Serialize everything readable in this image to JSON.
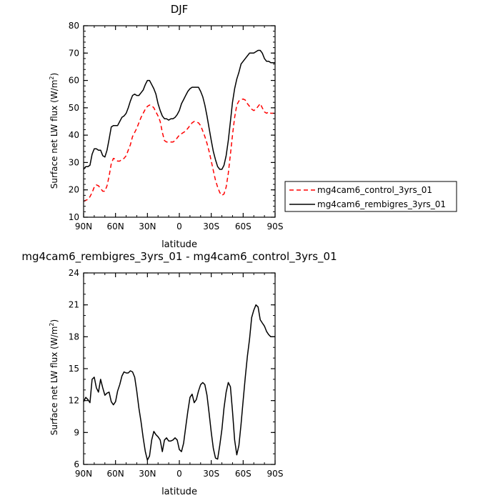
{
  "chart_data": [
    {
      "type": "line",
      "title": "DJF",
      "xlabel": "latitude",
      "ylabel": "Surface net LW flux (W/m²)",
      "ylabel_main": "Surface net LW flux (W/m",
      "ylabel_sup": "2",
      "ylabel_end": ")",
      "xlim": [
        90,
        -90
      ],
      "ylim": [
        10,
        80
      ],
      "xticks": [
        90,
        60,
        30,
        0,
        -30,
        -60,
        -90
      ],
      "xtick_labels": [
        "90N",
        "60N",
        "30N",
        "0",
        "30S",
        "60S",
        "90S"
      ],
      "yticks": [
        10,
        20,
        30,
        40,
        50,
        60,
        70,
        80
      ],
      "ytick_labels": [
        "10",
        "20",
        "30",
        "40",
        "50",
        "60",
        "70",
        "80"
      ],
      "legend": "right",
      "series": [
        {
          "name": "mg4cam6_control_3yrs_01",
          "color": "#ff0000",
          "dash": "dashed",
          "x": [
            90,
            88,
            86,
            84,
            82,
            80,
            78,
            76,
            74,
            72,
            70,
            68,
            66,
            64,
            62,
            60,
            58,
            56,
            54,
            52,
            50,
            48,
            46,
            44,
            42,
            40,
            38,
            36,
            34,
            32,
            30,
            28,
            26,
            24,
            22,
            20,
            18,
            16,
            14,
            12,
            10,
            8,
            6,
            4,
            2,
            0,
            -2,
            -4,
            -6,
            -8,
            -10,
            -12,
            -14,
            -16,
            -18,
            -20,
            -22,
            -24,
            -26,
            -28,
            -30,
            -32,
            -34,
            -36,
            -38,
            -40,
            -42,
            -44,
            -46,
            -48,
            -50,
            -52,
            -54,
            -56,
            -58,
            -60,
            -62,
            -64,
            -66,
            -68,
            -70,
            -72,
            -74,
            -76,
            -78,
            -80,
            -82,
            -84,
            -86,
            -88,
            -90
          ],
          "values": [
            15.8,
            16.2,
            16.5,
            17.5,
            19.0,
            21.0,
            21.8,
            21.5,
            20.5,
            19.5,
            19.5,
            21.5,
            25.0,
            29.5,
            31.5,
            31.2,
            30.5,
            30.5,
            31.2,
            31.5,
            32.5,
            34.5,
            36.5,
            39.5,
            41.0,
            42.5,
            44.5,
            46.5,
            48.0,
            49.5,
            50.5,
            51.0,
            50.8,
            50.0,
            48.5,
            47.0,
            45.0,
            41.0,
            38.0,
            37.5,
            37.5,
            37.5,
            37.5,
            38.0,
            39.0,
            40.0,
            40.5,
            41.0,
            41.5,
            42.5,
            43.5,
            44.5,
            45.0,
            44.8,
            44.5,
            43.5,
            41.5,
            39.5,
            37.0,
            34.0,
            30.5,
            27.0,
            23.5,
            21.0,
            19.0,
            18.0,
            18.5,
            21.0,
            26.0,
            33.0,
            40.0,
            46.5,
            51.0,
            52.5,
            53.0,
            53.2,
            52.8,
            51.5,
            50.5,
            49.5,
            49.0,
            49.5,
            50.5,
            51.5,
            50.0,
            48.5,
            48.0,
            48.5,
            48.0,
            48.0,
            48.0
          ]
        },
        {
          "name": "mg4cam6_rembigres_3yrs_01",
          "color": "#000000",
          "dash": "solid",
          "x": [
            90,
            88,
            86,
            84,
            82,
            80,
            78,
            76,
            74,
            72,
            70,
            68,
            66,
            64,
            62,
            60,
            58,
            56,
            54,
            52,
            50,
            48,
            46,
            44,
            42,
            40,
            38,
            36,
            34,
            32,
            30,
            28,
            26,
            24,
            22,
            20,
            18,
            16,
            14,
            12,
            10,
            8,
            6,
            4,
            2,
            0,
            -2,
            -4,
            -6,
            -8,
            -10,
            -12,
            -14,
            -16,
            -18,
            -20,
            -22,
            -24,
            -26,
            -28,
            -30,
            -32,
            -34,
            -36,
            -38,
            -40,
            -42,
            -44,
            -46,
            -48,
            -50,
            -52,
            -54,
            -56,
            -58,
            -60,
            -62,
            -64,
            -66,
            -68,
            -70,
            -72,
            -74,
            -76,
            -78,
            -80,
            -82,
            -84,
            -86,
            -88,
            -90
          ],
          "values": [
            27.5,
            28.5,
            28.5,
            29.0,
            33.0,
            35.0,
            35.0,
            34.5,
            34.5,
            32.5,
            32.0,
            34.5,
            38.5,
            43.0,
            43.5,
            43.5,
            43.5,
            45.0,
            46.5,
            47.0,
            48.0,
            50.0,
            52.5,
            54.5,
            55.0,
            54.5,
            54.5,
            55.5,
            56.5,
            58.5,
            60.0,
            60.0,
            58.5,
            57.0,
            55.0,
            51.5,
            49.0,
            47.0,
            46.0,
            46.0,
            45.5,
            46.0,
            46.0,
            46.5,
            47.5,
            49.0,
            51.5,
            53.0,
            54.5,
            56.0,
            57.0,
            57.5,
            57.5,
            57.5,
            57.5,
            56.0,
            54.0,
            51.0,
            47.0,
            42.5,
            38.0,
            34.0,
            31.0,
            28.5,
            27.5,
            27.5,
            29.0,
            32.5,
            38.0,
            45.0,
            52.0,
            57.0,
            60.5,
            63.0,
            66.0,
            67.0,
            68.0,
            69.0,
            70.0,
            70.0,
            70.0,
            70.5,
            71.0,
            71.0,
            70.0,
            68.0,
            67.0,
            67.0,
            66.5,
            66.5,
            66.5
          ]
        }
      ]
    },
    {
      "type": "line",
      "title": "mg4cam6_rembigres_3yrs_01 - mg4cam6_control_3yrs_01",
      "xlabel": "latitude",
      "ylabel": "Surface net LW flux (W/m²)",
      "ylabel_main": "Surface net LW flux (W/m",
      "ylabel_sup": "2",
      "ylabel_end": ")",
      "xlim": [
        90,
        -90
      ],
      "ylim": [
        6,
        24
      ],
      "xticks": [
        90,
        60,
        30,
        0,
        -30,
        -60,
        -90
      ],
      "xtick_labels": [
        "90N",
        "60N",
        "30N",
        "0",
        "30S",
        "60S",
        "90S"
      ],
      "yticks": [
        6,
        9,
        12,
        15,
        18,
        21,
        24
      ],
      "ytick_labels": [
        "6",
        "9",
        "12",
        "15",
        "18",
        "21",
        "24"
      ],
      "series": [
        {
          "color": "#000000",
          "dash": "solid",
          "x": [
            90,
            88,
            86,
            84,
            82,
            80,
            78,
            76,
            74,
            72,
            70,
            68,
            66,
            64,
            62,
            60,
            58,
            56,
            54,
            52,
            50,
            48,
            46,
            44,
            42,
            40,
            38,
            36,
            34,
            32,
            30,
            28,
            26,
            24,
            22,
            20,
            18,
            16,
            14,
            12,
            10,
            8,
            6,
            4,
            2,
            0,
            -2,
            -4,
            -6,
            -8,
            -10,
            -12,
            -14,
            -16,
            -18,
            -20,
            -22,
            -24,
            -26,
            -28,
            -30,
            -32,
            -34,
            -36,
            -38,
            -40,
            -42,
            -44,
            -46,
            -48,
            -50,
            -52,
            -54,
            -56,
            -58,
            -60,
            -62,
            -64,
            -66,
            -68,
            -70,
            -72,
            -74,
            -76,
            -78,
            -80,
            -82,
            -84,
            -86,
            -88,
            -90
          ],
          "values": [
            11.9,
            12.3,
            12.1,
            11.8,
            14.0,
            14.2,
            13.2,
            12.8,
            14.0,
            13.2,
            12.5,
            12.7,
            12.8,
            11.9,
            11.6,
            11.9,
            12.9,
            13.5,
            14.3,
            14.7,
            14.6,
            14.6,
            14.8,
            14.7,
            14.2,
            12.9,
            11.3,
            10.0,
            8.5,
            7.2,
            6.4,
            6.8,
            8.3,
            9.1,
            8.8,
            8.6,
            8.3,
            7.2,
            8.3,
            8.5,
            8.2,
            8.2,
            8.3,
            8.5,
            8.3,
            7.4,
            7.2,
            8.0,
            9.5,
            11.0,
            12.3,
            12.6,
            11.8,
            12.1,
            12.9,
            13.5,
            13.7,
            13.5,
            12.5,
            10.8,
            9.0,
            7.5,
            6.6,
            6.5,
            7.8,
            9.3,
            11.3,
            12.8,
            13.7,
            13.3,
            11.0,
            8.3,
            6.9,
            7.8,
            9.8,
            12.0,
            14.2,
            16.2,
            17.8,
            19.8,
            20.5,
            21.0,
            20.8,
            19.6,
            19.3,
            19.0,
            18.5,
            18.2,
            18.0,
            18.0,
            18.0
          ]
        }
      ]
    }
  ]
}
